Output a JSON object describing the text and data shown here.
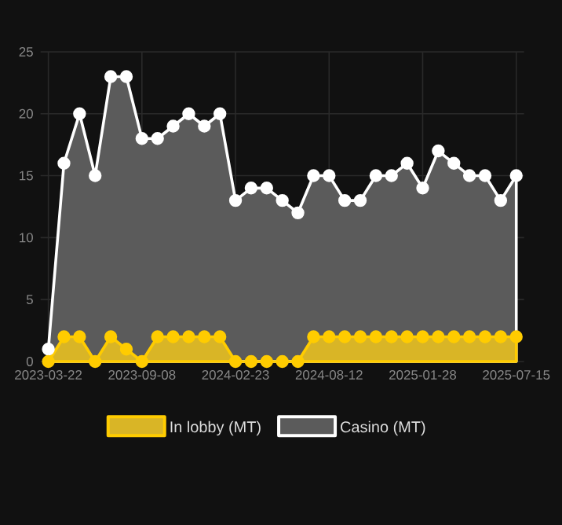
{
  "chart_data": {
    "type": "area",
    "categories": [
      "2023-03-22",
      null,
      null,
      null,
      null,
      null,
      "2023-09-08",
      null,
      null,
      null,
      null,
      null,
      "2024-02-23",
      null,
      null,
      null,
      null,
      null,
      "2024-08-12",
      null,
      null,
      null,
      null,
      null,
      "2025-01-28",
      null,
      null,
      null,
      null,
      null,
      "2025-07-15"
    ],
    "series": [
      {
        "name": "In lobby (MT)",
        "color": "#ffcc00",
        "values": [
          0,
          2,
          2,
          0,
          2,
          1,
          0,
          2,
          2,
          2,
          2,
          2,
          0,
          0,
          0,
          0,
          0,
          2,
          2,
          2,
          2,
          2,
          2,
          2,
          2,
          2,
          2,
          2,
          2,
          2,
          2
        ]
      },
      {
        "name": "Casino (MT)",
        "color": "#ffffff",
        "values": [
          1,
          16,
          20,
          15,
          23,
          23,
          18,
          18,
          19,
          20,
          19,
          20,
          13,
          14,
          14,
          13,
          12,
          15,
          15,
          13,
          13,
          15,
          15,
          16,
          14,
          17,
          16,
          15,
          15,
          13,
          15
        ]
      }
    ],
    "ylim": [
      0,
      25
    ],
    "yticks": [
      0,
      5,
      10,
      15,
      20,
      25
    ],
    "grid": true,
    "legend": "bottom",
    "marker": "circle",
    "line_style": "solid"
  }
}
